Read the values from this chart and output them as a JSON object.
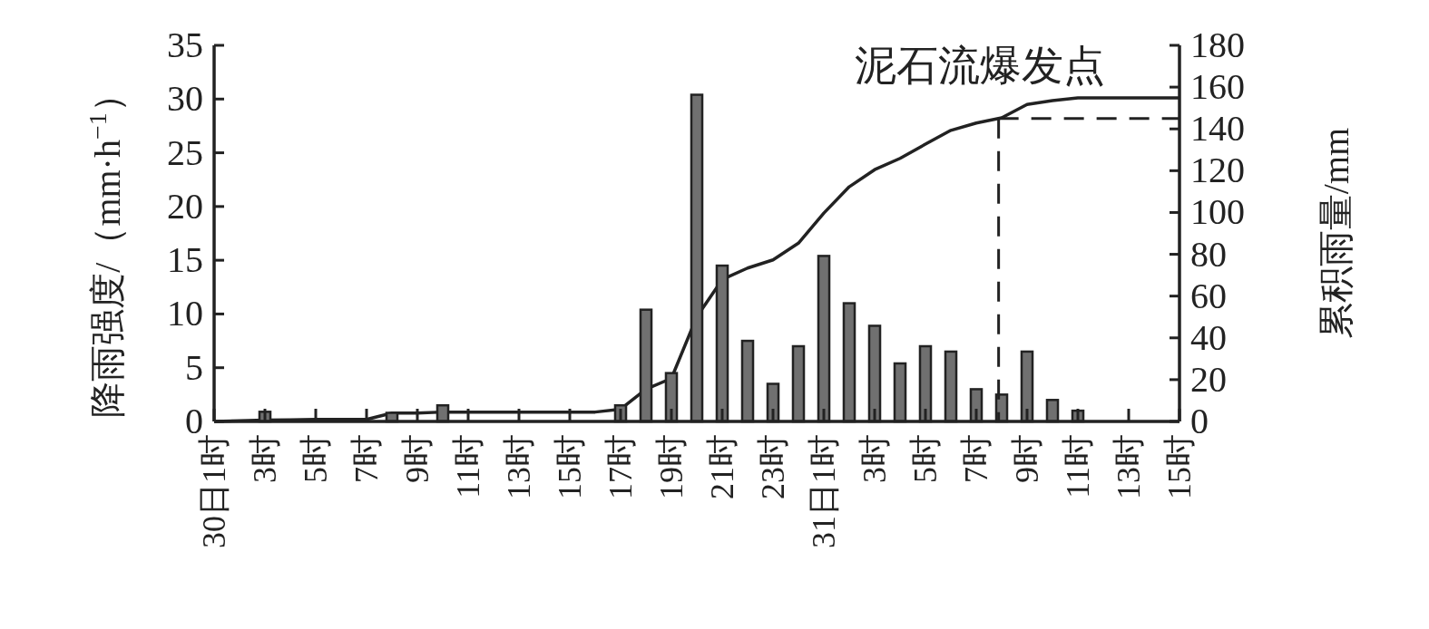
{
  "chart_data": {
    "type": "bar",
    "ylabel": "降雨强度/（mm·h$^{−1}$）",
    "y2label": "累积雨量/mm",
    "categories": [
      "30日1时",
      null,
      "3时",
      null,
      "5时",
      null,
      "7时",
      null,
      "9时",
      null,
      "11时",
      null,
      "13时",
      null,
      "15时",
      null,
      "17时",
      null,
      "19时",
      null,
      "21时",
      null,
      "23时",
      null,
      "31日1时",
      null,
      "3时",
      null,
      "5时",
      null,
      "7时",
      null,
      "9时",
      null,
      "11时",
      null,
      "13时",
      null,
      "15时"
    ],
    "series": [
      {
        "color": "#707070",
        "values": [
          0,
          0,
          0.9,
          0,
          0,
          0,
          0,
          0.8,
          0,
          1.5,
          0,
          0,
          0,
          0,
          0,
          0,
          1.5,
          10.4,
          4.5,
          30.4,
          14.5,
          7.5,
          3.5,
          7.0,
          15.4,
          11.0,
          8.9,
          5.4,
          7.0,
          6.5,
          3.0,
          2.5,
          6.5,
          2.0,
          1.0,
          0,
          0,
          0,
          0
        ]
      },
      {
        "type": "line",
        "axis": "y2",
        "color": "#222222",
        "line_style": "solid",
        "values": [
          0,
          0.3,
          0.6,
          0.8,
          1,
          1,
          1,
          4,
          4,
          4.5,
          4.5,
          4.5,
          4.5,
          4.5,
          4.5,
          4.5,
          5.9,
          15.5,
          20.6,
          50.1,
          67.9,
          73.4,
          77.3,
          85.3,
          99.7,
          112.3,
          120.5,
          125.9,
          132.7,
          139.3,
          142.8,
          145.3,
          151.7,
          153.5,
          154.8,
          154.8,
          154.8,
          154.8,
          154.8
        ]
      }
    ],
    "ylim": [
      0,
      35
    ],
    "yticks": [
      0,
      5,
      10,
      15,
      20,
      25,
      30,
      35
    ],
    "y2lim": [
      0,
      180
    ],
    "y2ticks": [
      0,
      20,
      40,
      60,
      80,
      100,
      120,
      140,
      160,
      180
    ],
    "ref_lines": [
      {
        "axis": "y2",
        "value": 145,
        "line_style": "dashed",
        "color": "#222222"
      }
    ],
    "annotations": [
      "泥石流爆发点"
    ]
  }
}
